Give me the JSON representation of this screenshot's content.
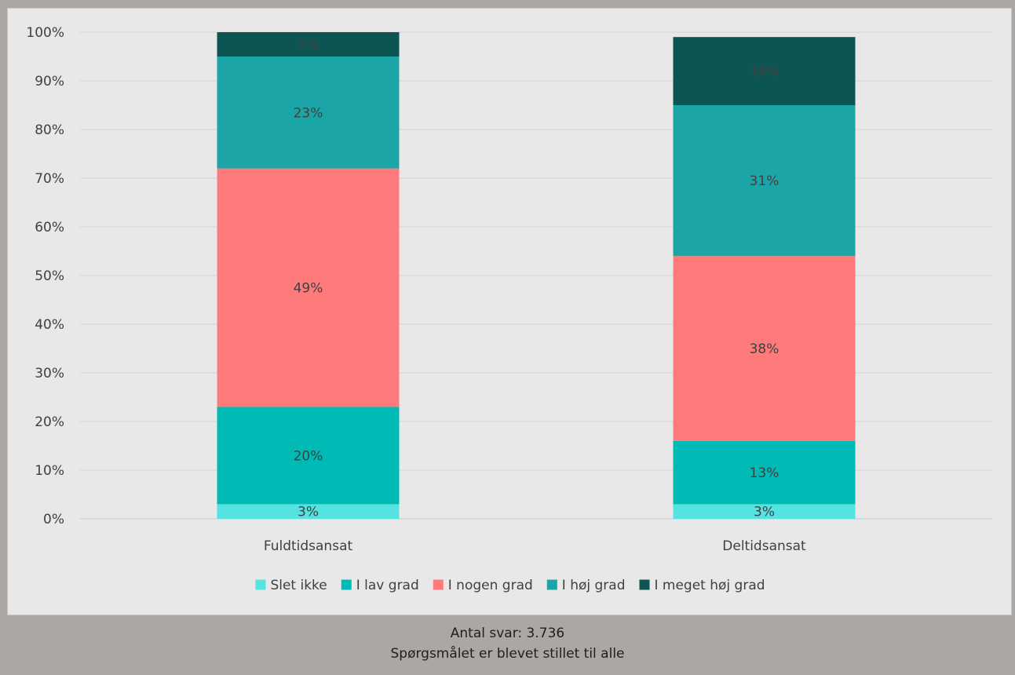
{
  "chart_data": {
    "type": "bar",
    "stacked": true,
    "categories": [
      "Fuldtidsansat",
      "Deltidsansat"
    ],
    "ylim": [
      0,
      100
    ],
    "yticks": [
      "0%",
      "10%",
      "20%",
      "30%",
      "40%",
      "50%",
      "60%",
      "70%",
      "80%",
      "90%",
      "100%"
    ],
    "grid": true,
    "legend_position": "bottom",
    "series": [
      {
        "name": "Slet ikke",
        "color": "#54e3e0",
        "values": [
          3,
          3
        ],
        "labels": [
          "3%",
          "3%"
        ]
      },
      {
        "name": "I lav grad",
        "color": "#00bab5",
        "values": [
          20,
          13
        ],
        "labels": [
          "20%",
          "13%"
        ]
      },
      {
        "name": "I nogen grad",
        "color": "#ff7b7b",
        "values": [
          49,
          38
        ],
        "labels": [
          "49%",
          "38%"
        ]
      },
      {
        "name": "I høj grad",
        "color": "#1ca5a6",
        "values": [
          23,
          31
        ],
        "labels": [
          "23%",
          "31%"
        ]
      },
      {
        "name": "I meget høj grad",
        "color": "#0d5553",
        "values": [
          5,
          14
        ],
        "labels": [
          "5%",
          "14%"
        ]
      }
    ]
  },
  "footer": {
    "line1": "Antal svar: 3.736",
    "line2": "Spørgsmålet er blevet stillet til alle"
  }
}
